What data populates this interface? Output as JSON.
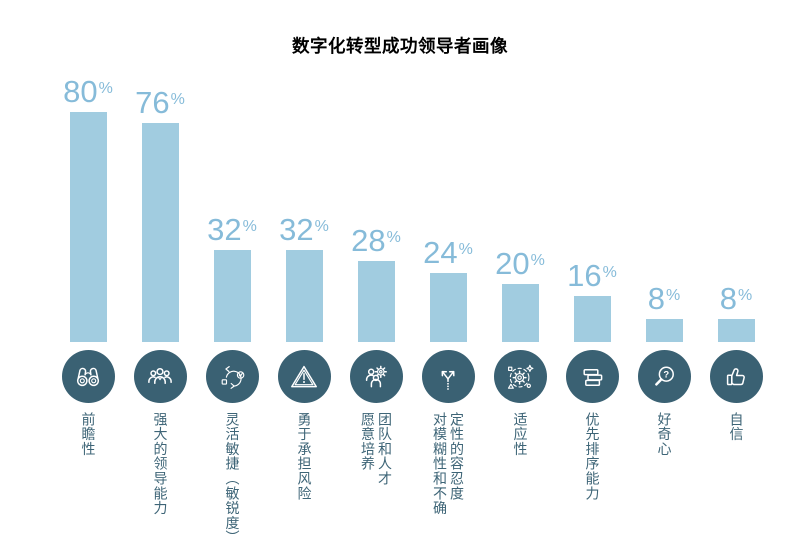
{
  "title": "数字化转型成功领导者画像",
  "percent_sign": "%",
  "colors": {
    "background": "#ffffff",
    "title_text": "#000000",
    "bar": "#a1cce0",
    "value_text": "#86bbd9",
    "category_text": "#3e6577",
    "icon_circle_bg": "#3a6173",
    "icon_stroke": "#ffffff"
  },
  "chart_data": {
    "type": "bar",
    "title": "数字化转型成功领导者画像",
    "unit": "percent",
    "ylim": [
      0,
      100
    ],
    "grid": false,
    "axis_shown": false,
    "value_labels_position": "above-bar",
    "categories": [
      "前瞻性",
      "强大的领导能力",
      "灵活敏捷（敏锐度）",
      "勇于承担风险",
      "愿意培养团队和人才",
      "对模糊性和不确定性的容忍度",
      "适应性",
      "优先排序能力",
      "好奇心",
      "自信"
    ],
    "values": [
      80,
      76,
      32,
      32,
      28,
      24,
      20,
      16,
      8,
      8
    ],
    "bars": [
      {
        "value": 80,
        "label": "前瞻性",
        "icon": "binoculars-icon"
      },
      {
        "value": 76,
        "label": "强大的领导能力",
        "icon": "team-icon"
      },
      {
        "value": 32,
        "label": "灵活敏捷（敏锐度）",
        "icon": "agile-loop-icon"
      },
      {
        "value": 32,
        "label": "勇于承担风险",
        "icon": "warning-triangle-icon"
      },
      {
        "value": 28,
        "label": "愿意培养\n团队和人才",
        "icon": "talent-gear-icon"
      },
      {
        "value": 24,
        "label": "对模糊性和不确\n定性的容忍度",
        "icon": "fork-arrows-icon"
      },
      {
        "value": 20,
        "label": "适应性",
        "icon": "adapt-gear-icon"
      },
      {
        "value": 16,
        "label": "优先排序能力",
        "icon": "priority-list-icon"
      },
      {
        "value": 8,
        "label": "好奇心",
        "icon": "magnifier-question-icon"
      },
      {
        "value": 8,
        "label": "自信",
        "icon": "thumbs-up-icon"
      }
    ]
  }
}
